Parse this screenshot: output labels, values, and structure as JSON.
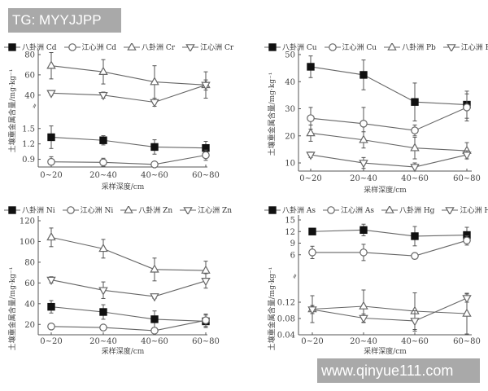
{
  "watermarks": {
    "top": "TG: MYYJJPP",
    "bottom": "www.qinyue111.com"
  },
  "colors": {
    "line": "#666666",
    "marker_fill_solid": "#111111",
    "marker_fill_open": "#ffffff",
    "watermark_bg": "#a9a9a9"
  },
  "chart_data": [
    {
      "type": "line",
      "id": "cd-cr",
      "title": "",
      "xlabel": "采样深度/cm",
      "ylabel": "土壤重金属含量/mg·kg⁻¹",
      "categories": [
        "0~20",
        "20~40",
        "40~60",
        "60~80"
      ],
      "axis_break": true,
      "y_segments": [
        {
          "range": [
            0.75,
            1.75
          ],
          "ticks": [
            "0.9",
            "1.2",
            "1.5"
          ]
        },
        {
          "range": [
            35,
            80
          ],
          "ticks": [
            "40",
            "60",
            "80"
          ]
        }
      ],
      "series": [
        {
          "name": "八卦洲 Cd",
          "marker": "square-filled",
          "segment": 0,
          "values": [
            1.33,
            1.27,
            1.14,
            1.12
          ],
          "err": [
            0.22,
            0.09,
            0.14,
            0.13
          ]
        },
        {
          "name": "江心洲 Cd",
          "marker": "circle-open",
          "segment": 0,
          "values": [
            0.85,
            0.84,
            0.8,
            0.98
          ],
          "err": [
            0.1,
            0.08,
            0.05,
            0.1
          ]
        },
        {
          "name": "八卦洲 Cr",
          "marker": "triangle-up-open",
          "segment": 1,
          "values": [
            69,
            63,
            53,
            50
          ],
          "err": [
            13,
            12,
            16,
            13
          ]
        },
        {
          "name": "江心洲 Cr",
          "marker": "triangle-down-open",
          "segment": 1,
          "values": [
            42,
            40,
            33,
            50
          ],
          "err": [
            2,
            3,
            4,
            5
          ]
        }
      ]
    },
    {
      "type": "line",
      "id": "cu-pb",
      "title": "",
      "xlabel": "",
      "ylabel": "土壤重金属含量/mg·kg⁻¹",
      "categories": [
        "0~20",
        "20~40",
        "40~60",
        "60~80"
      ],
      "axis_break": false,
      "y_segments": [
        {
          "range": [
            7,
            50
          ],
          "ticks": [
            "10",
            "20",
            "30",
            "40",
            "50"
          ]
        }
      ],
      "series": [
        {
          "name": "八卦洲 Cu",
          "marker": "square-filled",
          "segment": 0,
          "values": [
            45.5,
            42.5,
            32.5,
            31.5
          ],
          "err": [
            4,
            5.5,
            7,
            5
          ]
        },
        {
          "name": "江心洲 Cu",
          "marker": "circle-open",
          "segment": 0,
          "values": [
            26.5,
            24.5,
            22,
            30.5
          ],
          "err": [
            4,
            6,
            2,
            5
          ]
        },
        {
          "name": "八卦洲 Pb",
          "marker": "triangle-up-open",
          "segment": 0,
          "values": [
            21,
            18.5,
            15.5,
            14.5
          ],
          "err": [
            3,
            3,
            4,
            3
          ]
        },
        {
          "name": "江心洲 Pb",
          "marker": "triangle-down-open",
          "segment": 0,
          "values": [
            13,
            10,
            8.5,
            13
          ],
          "err": [
            1,
            2,
            1.5,
            1.5
          ]
        }
      ]
    },
    {
      "type": "line",
      "id": "ni-zn",
      "title": "",
      "xlabel": "采样深度/cm",
      "ylabel": "土壤重金属含量/mg·kg⁻¹",
      "categories": [
        "0~20",
        "20~40",
        "40~60",
        "60~80"
      ],
      "axis_break": false,
      "y_segments": [
        {
          "range": [
            10,
            120
          ],
          "ticks": [
            "20",
            "40",
            "60",
            "80",
            "100",
            "120"
          ]
        }
      ],
      "series": [
        {
          "name": "八卦洲 Ni",
          "marker": "square-filled",
          "segment": 0,
          "values": [
            37,
            32,
            25,
            23
          ],
          "err": [
            6,
            7,
            8,
            6
          ]
        },
        {
          "name": "江心洲 Ni",
          "marker": "circle-open",
          "segment": 0,
          "values": [
            18,
            17,
            14,
            24
          ],
          "err": [
            1.5,
            2,
            2,
            6
          ]
        },
        {
          "name": "八卦洲 Zn",
          "marker": "triangle-up-open",
          "segment": 0,
          "values": [
            104,
            93,
            73,
            72
          ],
          "err": [
            9,
            9,
            11,
            9
          ]
        },
        {
          "name": "江心洲 Zn",
          "marker": "triangle-down-open",
          "segment": 0,
          "values": [
            63,
            53,
            47,
            62
          ],
          "err": [
            3,
            8,
            2,
            7
          ]
        }
      ]
    },
    {
      "type": "line",
      "id": "as-hg",
      "title": "",
      "xlabel": "采样深度/cm",
      "ylabel": "土壤重金属含量/mg·kg⁻¹",
      "categories": [
        "0~20",
        "20~40",
        "40~60",
        "60~80"
      ],
      "axis_break": true,
      "y_segments": [
        {
          "range": [
            0.04,
            0.16
          ],
          "ticks": [
            "0.04",
            "0.08",
            "0.12"
          ]
        },
        {
          "range": [
            3,
            15
          ],
          "ticks": [
            "6",
            "9",
            "12",
            "15"
          ]
        }
      ],
      "series": [
        {
          "name": "八卦洲 As",
          "marker": "square-filled",
          "segment": 1,
          "values": [
            12,
            12.4,
            10.8,
            11.1
          ],
          "err": [
            0.3,
            1.5,
            2.5,
            2
          ]
        },
        {
          "name": "江心洲 As",
          "marker": "circle-open",
          "segment": 1,
          "values": [
            6.6,
            6.6,
            5.7,
            9.7
          ],
          "err": [
            1.6,
            2.1,
            0.8,
            1.2
          ]
        },
        {
          "name": "八卦洲 Hg",
          "marker": "triangle-up-open",
          "segment": 0,
          "values": [
            0.103,
            0.11,
            0.098,
            0.092
          ],
          "err": [
            0.033,
            0.04,
            0.045,
            0.05
          ]
        },
        {
          "name": "江心洲 Hg",
          "marker": "triangle-down-open",
          "segment": 0,
          "values": [
            0.102,
            0.081,
            0.074,
            0.13
          ],
          "err": [
            0.01,
            0.01,
            0.025,
            0.01
          ]
        }
      ]
    }
  ],
  "panels": [
    {
      "legend": [
        "八卦洲 Cd",
        "江心洲 Cd",
        "八卦洲 Cr",
        "江心洲 Cr"
      ]
    },
    {
      "legend": [
        "八卦洲 Cu",
        "江心洲 Cu",
        "八卦洲 Pb",
        "江心洲 Pb"
      ]
    },
    {
      "legend": [
        "八卦洲 Ni",
        "江心洲 Ni",
        "八卦洲 Zn",
        "江心洲 Zn"
      ]
    },
    {
      "legend": [
        "八卦洲 As",
        "江心洲 As",
        "八卦洲 Hg",
        "江心洲 Hg"
      ]
    }
  ]
}
